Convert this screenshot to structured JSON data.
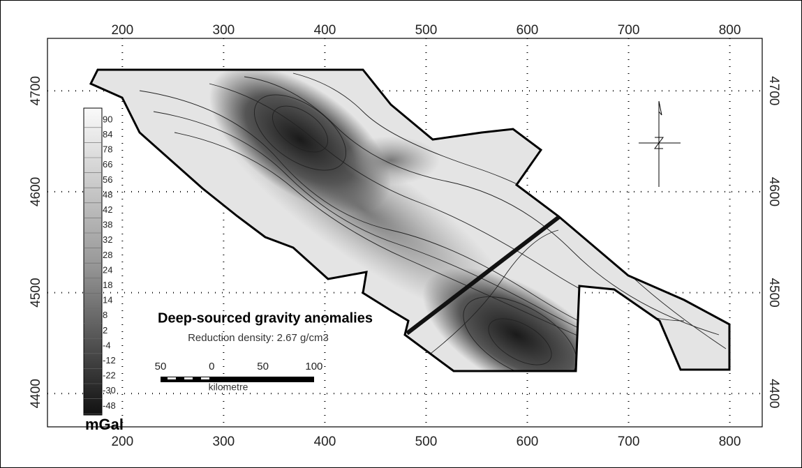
{
  "map": {
    "xlim": [
      126,
      832
    ],
    "ylim": [
      4367,
      4752
    ],
    "xticks": [
      200,
      300,
      400,
      500,
      600,
      700,
      800
    ],
    "yticks": [
      4400,
      4500,
      4600,
      4700
    ],
    "title": "Deep-sourced gravity anomalies",
    "subtitle": "Reduction density: 2.67 g/cm3",
    "colorbar": {
      "unit": "mGal",
      "labels": [
        "90",
        "84",
        "78",
        "66",
        "56",
        "48",
        "42",
        "38",
        "32",
        "28",
        "24",
        "18",
        "14",
        "8",
        "2",
        "-4",
        "-12",
        "-22",
        "-30",
        "-48"
      ]
    },
    "scale_bar": {
      "labels": [
        "50",
        "0",
        "50",
        "100"
      ],
      "unit": "kilometre"
    }
  }
}
